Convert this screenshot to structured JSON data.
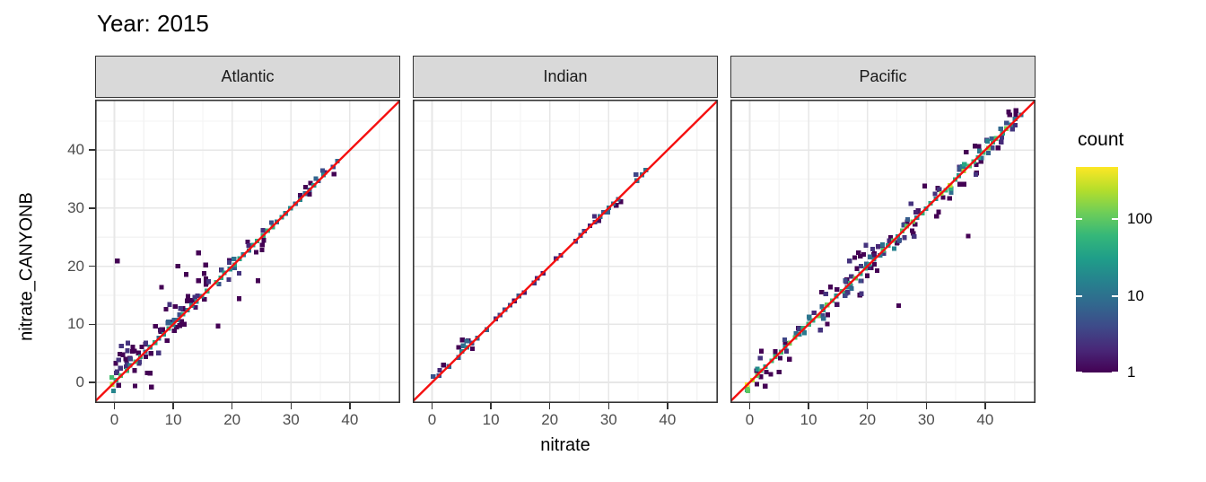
{
  "title": "Year: 2015",
  "chart_data": {
    "type": "bin2d",
    "title": "Year: 2015",
    "xlabel": "nitrate",
    "ylabel": "nitrate_CANYONB",
    "x_ticks": [
      0,
      10,
      20,
      30,
      40
    ],
    "y_ticks": [
      0,
      10,
      20,
      30,
      40
    ],
    "minor_gridlines": [
      5,
      15,
      25,
      35,
      45
    ],
    "xlim": [
      -3.3,
      48.5
    ],
    "ylim": [
      -3.6,
      48.7
    ],
    "bin_size": 0.8,
    "grid": true,
    "reference_line": {
      "type": "y=x",
      "color": "#f50f0f",
      "width": 2.4
    },
    "legend": {
      "title": "count",
      "position": "right",
      "scale": "log10",
      "range": [
        1,
        480
      ],
      "tick_values": [
        100,
        10,
        1
      ],
      "tick_labels": [
        "100",
        "10",
        "1"
      ]
    },
    "colormap": {
      "name": "viridis",
      "stops": [
        "#440154",
        "#482878",
        "#3e4a89",
        "#31688e",
        "#26828e",
        "#1f9e89",
        "#35b779",
        "#6ece58",
        "#b5de2b",
        "#fde725"
      ]
    },
    "theme": {
      "panel_bg": "#ffffff",
      "grid_major": "#e7e7e7",
      "grid_minor": "#f3f3f3",
      "panel_border": "#333333",
      "strip_bg": "#d9d9d9",
      "strip_border": "#333333",
      "tick_color": "#333333",
      "tick_label_color": "#4d4d4d"
    },
    "facets": [
      {
        "label": "Atlantic",
        "description": "dense 2d-binned scatter hugging y=x from 0 to 38, extra scatter above line for x 0-17, green high-count bins near origin and mid-diagonal",
        "gen": {
          "seed": 101,
          "diag": {
            "min": -0.4,
            "max": 38.2,
            "gap_prob": 0.03,
            "anchors": [
              [
                0,
                150
              ],
              [
                2,
                35
              ],
              [
                6,
                18
              ],
              [
                12,
                22
              ],
              [
                16,
                45
              ],
              [
                22,
                22
              ],
              [
                30,
                18
              ],
              [
                38,
                10
              ]
            ],
            "jitter": 0.45
          },
          "band": {
            "prob": 0.5,
            "max_extra": 2,
            "above_frac": 0.55,
            "spread": 1.1,
            "count_frac": 0.12
          },
          "scatter": [
            {
              "n": 48,
              "x_range": [
                0,
                17
              ],
              "spread": 4.2,
              "above_frac": 0.78
            },
            {
              "n": 14,
              "x_range": [
                1,
                26
              ],
              "spread": 2.4,
              "above_frac": 0.3
            }
          ],
          "outliers": [
            [
              0.5,
              20.9,
              1
            ],
            [
              14.3,
              22.3,
              1
            ],
            [
              10.8,
              20,
              1
            ],
            [
              8,
              16.4,
              1
            ],
            [
              12.2,
              18.6,
              1
            ],
            [
              17.6,
              9.7,
              1
            ],
            [
              21.2,
              14.4,
              1
            ],
            [
              24.4,
              17.5,
              1
            ],
            [
              6.3,
              -0.8,
              1
            ],
            [
              3.5,
              -0.6,
              1
            ]
          ]
        }
      },
      {
        "label": "Indian",
        "description": "sparse bins tight on y=x from 0 to 37, small blue bump above line near x=5-6",
        "gen": {
          "seed": 202,
          "diag": {
            "min": -0.4,
            "max": 36.6,
            "gap_prob": 0.32,
            "anchors": [
              [
                0,
                10
              ],
              [
                2,
                4
              ],
              [
                5,
                12
              ],
              [
                10,
                3
              ],
              [
                18,
                2
              ],
              [
                26,
                3
              ],
              [
                33,
                9
              ],
              [
                36,
                6
              ]
            ],
            "jitter": 0.35
          },
          "band": {
            "prob": 0.22,
            "max_extra": 1,
            "above_frac": 0.6,
            "spread": 0.8,
            "count_frac": 0.3
          },
          "scatter": [
            {
              "n": 5,
              "x_range": [
                0,
                7
              ],
              "spread": 1.3,
              "above_frac": 0.7
            }
          ],
          "outliers": [
            [
              5.3,
              6.3,
              9
            ],
            [
              5.9,
              7.1,
              8
            ],
            [
              0.2,
              1.0,
              5
            ],
            [
              1.3,
              2.1,
              2
            ],
            [
              31.3,
              30.5,
              1
            ],
            [
              32.1,
              31.1,
              1
            ]
          ]
        }
      },
      {
        "label": "Pacific",
        "description": "dense 2d-binned scatter along y=x from 0 to 46, yellow bin at origin, green segments mid/high range, isolated outliers below line",
        "gen": {
          "seed": 303,
          "diag": {
            "min": -0.4,
            "max": 46.4,
            "gap_prob": 0.0,
            "anchors": [
              [
                0,
                480
              ],
              [
                2,
                90
              ],
              [
                6,
                45
              ],
              [
                12,
                55
              ],
              [
                18,
                35
              ],
              [
                24,
                30
              ],
              [
                30,
                45
              ],
              [
                34,
                90
              ],
              [
                38,
                55
              ],
              [
                42,
                70
              ],
              [
                46,
                25
              ]
            ],
            "jitter": 0.5
          },
          "band": {
            "prob": 0.72,
            "max_extra": 3,
            "above_frac": 0.5,
            "spread": 1.2,
            "count_frac": 0.1
          },
          "scatter": [
            {
              "n": 55,
              "x_range": [
                0,
                34
              ],
              "spread": 3.2,
              "above_frac": 0.55
            },
            {
              "n": 16,
              "x_range": [
                34,
                46
              ],
              "spread": 2.0,
              "above_frac": 0.45
            }
          ],
          "outliers": [
            [
              37.1,
              25.2,
              1
            ],
            [
              25.3,
              13.2,
              1
            ]
          ]
        }
      }
    ]
  }
}
